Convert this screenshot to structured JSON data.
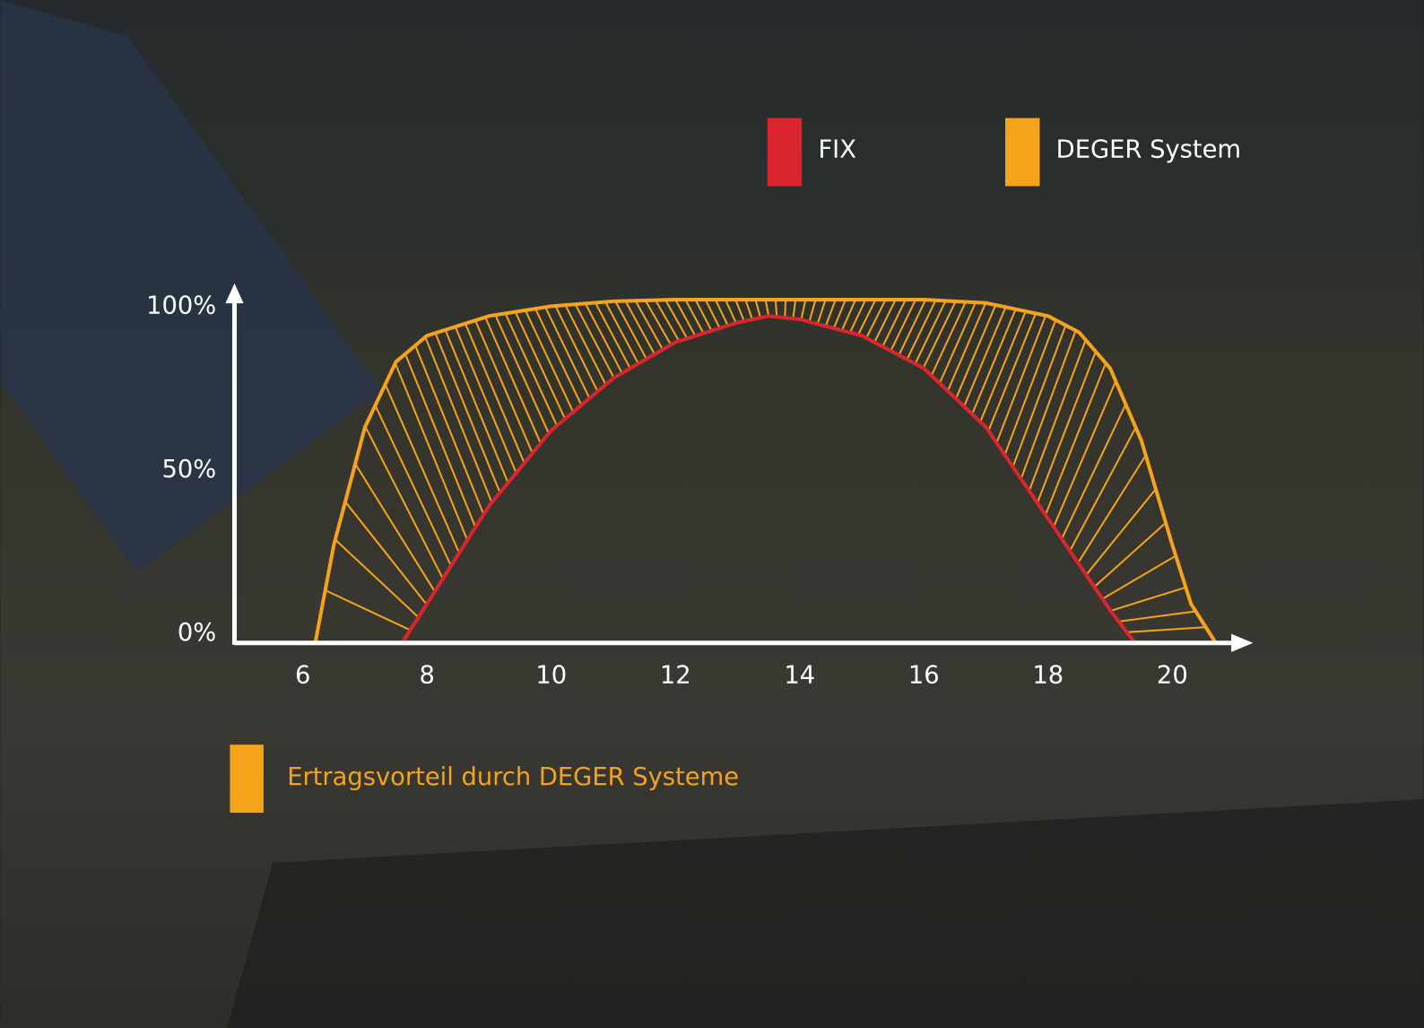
{
  "chart_data": {
    "type": "line",
    "series": [
      {
        "name": "FIX",
        "color": "#d9262e",
        "x": [
          7.6,
          8,
          9,
          10,
          11,
          12,
          13,
          13.5,
          14,
          15,
          16,
          17,
          18,
          19,
          19.4
        ],
        "values": [
          0,
          12,
          42,
          65,
          81,
          92,
          98,
          100,
          99,
          94,
          84,
          66,
          38,
          10,
          0
        ]
      },
      {
        "name": "DEGER System",
        "color": "#f5a31a",
        "x": [
          6.2,
          6.5,
          7,
          7.5,
          8,
          9,
          10,
          11,
          12,
          13,
          14,
          15,
          16,
          17,
          18,
          18.5,
          19,
          19.5,
          20,
          20.3,
          20.7
        ],
        "values": [
          0,
          30,
          66,
          86,
          94,
          100,
          103,
          104.5,
          105,
          105,
          105,
          105,
          105,
          104,
          100,
          95,
          84,
          62,
          30,
          12,
          0
        ]
      }
    ],
    "xlim": [
      4.9,
      21.3
    ],
    "xticks": [
      6,
      8,
      10,
      12,
      14,
      16,
      18,
      20
    ],
    "ylim": [
      0,
      110
    ],
    "yticks": [
      {
        "value": 0,
        "label": "0%"
      },
      {
        "value": 50,
        "label": "50%"
      },
      {
        "value": 100,
        "label": "100%"
      }
    ],
    "advantage": {
      "label": "Ertragsvorteil durch DEGER Systeme",
      "color": "#f5a31a"
    }
  }
}
